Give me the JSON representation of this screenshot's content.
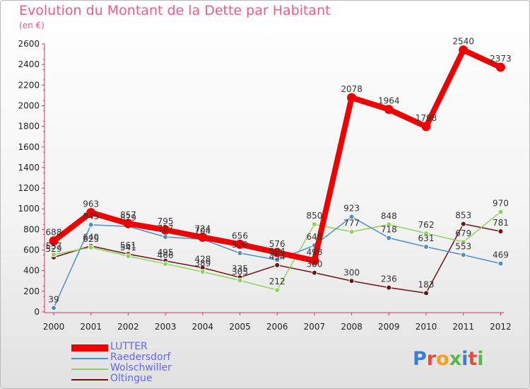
{
  "title": "Evolution du Montant de la Dette par Habitant",
  "subtitle": "(en €)",
  "logo_text": "Proxiti",
  "chart_data": {
    "type": "line",
    "x": [
      "2000",
      "2001",
      "2002",
      "2003",
      "2004",
      "2005",
      "2006",
      "2007",
      "2008",
      "2009",
      "2010",
      "2011",
      "2012"
    ],
    "ylim": [
      0,
      2600
    ],
    "yticks": [
      0,
      200,
      400,
      600,
      800,
      1000,
      1200,
      1400,
      1600,
      1800,
      2000,
      2200,
      2400,
      2600
    ],
    "grid": false,
    "legend_position": "bottom-left",
    "series": [
      {
        "name": "LUTTER",
        "color": "#ee0000",
        "values": [
          688,
          963,
          857,
          795,
          724,
          656,
          576,
          498,
          2078,
          1964,
          1798,
          2540,
          2373
        ]
      },
      {
        "name": "Raedersdorf",
        "color": "#4c8fc9",
        "values": [
          39,
          845,
          829,
          727,
          704,
          570,
          504,
          645,
          923,
          718,
          631,
          553,
          469
        ]
      },
      {
        "name": "Wolschwiller",
        "color": "#8fd45a",
        "values": [
          557,
          625,
          541,
          466,
          389,
          305,
          212,
          850,
          777,
          848,
          762,
          679,
          970
        ]
      },
      {
        "name": "Oltingue",
        "color": "#6e1111",
        "values": [
          529,
          640,
          561,
          495,
          428,
          335,
          454,
          380,
          300,
          236,
          183,
          853,
          781
        ]
      }
    ]
  }
}
